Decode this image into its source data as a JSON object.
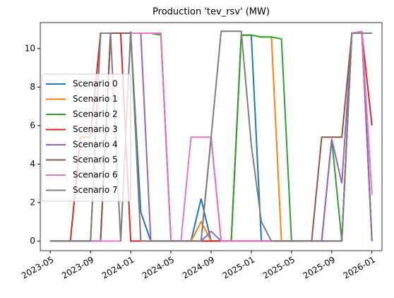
{
  "chart_data": {
    "type": "line",
    "title": "Production 'tev_rsv' (MW)",
    "x": [
      "2023-05",
      "2023-06",
      "2023-07",
      "2023-08",
      "2023-09",
      "2023-10",
      "2023-11",
      "2023-12",
      "2024-01",
      "2024-02",
      "2024-03",
      "2024-04",
      "2024-05",
      "2024-06",
      "2024-07",
      "2024-08",
      "2024-09",
      "2024-10",
      "2024-11",
      "2024-12",
      "2025-01",
      "2025-02",
      "2025-03",
      "2025-04",
      "2025-05",
      "2025-06",
      "2025-07",
      "2025-08",
      "2025-09",
      "2025-10",
      "2025-11",
      "2025-12",
      "2026-01"
    ],
    "series": [
      {
        "name": "Scenario 0",
        "color": "#1f77b4",
        "values": [
          0,
          0,
          0,
          0,
          0,
          0,
          10.8,
          10.8,
          10.8,
          1.5,
          0,
          0,
          0,
          0,
          0,
          2.2,
          0,
          0,
          0,
          10.7,
          10.7,
          0,
          0,
          0,
          0,
          0,
          0,
          0,
          0,
          0,
          10.8,
          10.8,
          0
        ]
      },
      {
        "name": "Scenario 1",
        "color": "#ff7f0e",
        "values": [
          0,
          0,
          0,
          0,
          0,
          10.8,
          10.8,
          10.8,
          10.8,
          0,
          0,
          0,
          0,
          0,
          0,
          1,
          0,
          0,
          0,
          10.7,
          10.7,
          10.6,
          10.6,
          0,
          0,
          0,
          0,
          0,
          0,
          0,
          10.8,
          10.8,
          0
        ]
      },
      {
        "name": "Scenario 2",
        "color": "#2ca02c",
        "values": [
          0,
          0,
          0,
          0,
          0,
          10.8,
          10.8,
          10.8,
          10.8,
          10.8,
          10.8,
          10.7,
          0,
          0,
          0,
          0,
          0,
          0,
          0,
          10.7,
          10.7,
          10.6,
          10.6,
          10.5,
          0,
          0,
          0,
          0,
          5.3,
          0,
          10.8,
          10.8,
          0
        ]
      },
      {
        "name": "Scenario 3",
        "color": "#d62728",
        "values": [
          0,
          0,
          0,
          5.4,
          5.4,
          10.8,
          10.8,
          10.8,
          0,
          0,
          0,
          0,
          0,
          0,
          0,
          0,
          0,
          0,
          0,
          0,
          0,
          0,
          0,
          0,
          0,
          0,
          0,
          0,
          0,
          0,
          10.8,
          10.8,
          6
        ]
      },
      {
        "name": "Scenario 4",
        "color": "#9467bd",
        "values": [
          0,
          0,
          0,
          0,
          0,
          0,
          10.8,
          10.8,
          10.8,
          10.8,
          0,
          0,
          0,
          0,
          0,
          0,
          0.5,
          0,
          0,
          0,
          0,
          0,
          0,
          0,
          0,
          0,
          0,
          0,
          5.3,
          3,
          10.8,
          10.8,
          0
        ]
      },
      {
        "name": "Scenario 5",
        "color": "#8c564b",
        "values": [
          0,
          0,
          0,
          0,
          0,
          0,
          10.8,
          10.8,
          10.8,
          10.8,
          10.8,
          10.8,
          0,
          0,
          0,
          0,
          5.4,
          0,
          0,
          0,
          0,
          0,
          0,
          0,
          0,
          0,
          0,
          5.4,
          5.4,
          5.4,
          10.8,
          10.8,
          10.8
        ]
      },
      {
        "name": "Scenario 6",
        "color": "#e377c2",
        "values": [
          0,
          0,
          0,
          0,
          0,
          0,
          0,
          0,
          10.8,
          10.8,
          10.8,
          10.8,
          0,
          0,
          5.4,
          5.4,
          5.4,
          0,
          0,
          0,
          0,
          0,
          0,
          0,
          0,
          0,
          0,
          0,
          0,
          0,
          10.8,
          10.9,
          2.4
        ]
      },
      {
        "name": "Scenario 7",
        "color": "#7f7f7f",
        "values": [
          0,
          0,
          0,
          0,
          0,
          10.8,
          10.8,
          0,
          10.9,
          0,
          0,
          0,
          0,
          0,
          0,
          0,
          5.4,
          10.9,
          10.9,
          10.9,
          5,
          1,
          0,
          0,
          0,
          0,
          0,
          0,
          0,
          0,
          10.8,
          10.8,
          10.8
        ]
      }
    ],
    "xlim": [
      "2023-04",
      "2026-02"
    ],
    "xticks": [
      "2023-05",
      "2023-09",
      "2024-01",
      "2024-05",
      "2024-09",
      "2025-01",
      "2025-05",
      "2025-09",
      "2026-01"
    ],
    "ylim": [
      -0.5,
      11.35
    ],
    "yticks": [
      0,
      2,
      4,
      6,
      8,
      10
    ],
    "legend": "center-left"
  }
}
